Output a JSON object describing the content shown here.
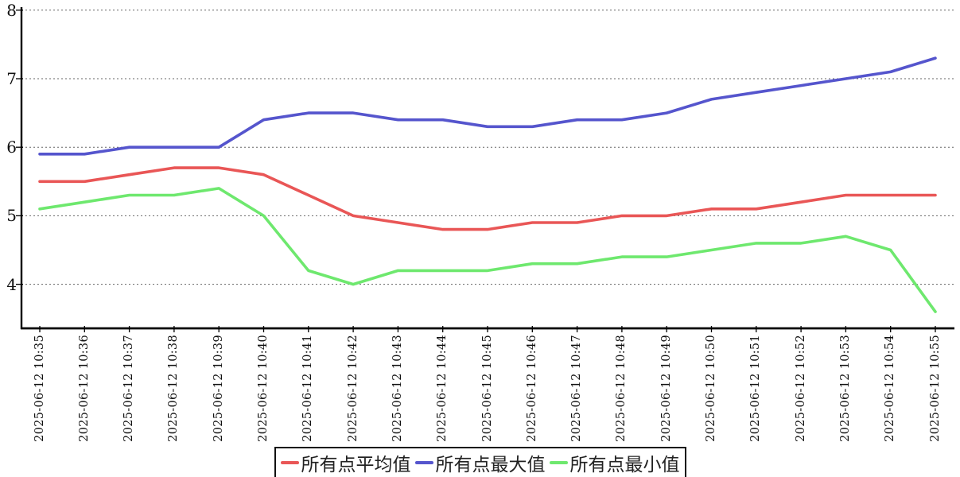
{
  "chart_data": {
    "type": "line",
    "title": "",
    "xlabel": "",
    "ylabel": "",
    "categories": [
      "2025-06-12 10:35",
      "2025-06-12 10:36",
      "2025-06-12 10:37",
      "2025-06-12 10:38",
      "2025-06-12 10:39",
      "2025-06-12 10:40",
      "2025-06-12 10:41",
      "2025-06-12 10:42",
      "2025-06-12 10:43",
      "2025-06-12 10:44",
      "2025-06-12 10:45",
      "2025-06-12 10:46",
      "2025-06-12 10:47",
      "2025-06-12 10:48",
      "2025-06-12 10:49",
      "2025-06-12 10:50",
      "2025-06-12 10:51",
      "2025-06-12 10:52",
      "2025-06-12 10:53",
      "2025-06-12 10:54",
      "2025-06-12 10:55"
    ],
    "series": [
      {
        "name": "所有点平均值",
        "color": "#e95656",
        "values": [
          5.5,
          5.5,
          5.6,
          5.7,
          5.7,
          5.6,
          5.3,
          5.0,
          4.9,
          4.8,
          4.8,
          4.9,
          4.9,
          5.0,
          5.0,
          5.1,
          5.1,
          5.2,
          5.3,
          5.3,
          5.3
        ]
      },
      {
        "name": "所有点最大值",
        "color": "#5555cd",
        "values": [
          5.9,
          5.9,
          6.0,
          6.0,
          6.0,
          6.4,
          6.5,
          6.5,
          6.4,
          6.4,
          6.3,
          6.3,
          6.4,
          6.4,
          6.5,
          6.7,
          6.8,
          6.9,
          7.0,
          7.1,
          7.3
        ]
      },
      {
        "name": "所有点最小值",
        "color": "#6ee86e",
        "values": [
          5.1,
          5.2,
          5.3,
          5.3,
          5.4,
          5.0,
          4.2,
          4.0,
          4.2,
          4.2,
          4.2,
          4.3,
          4.3,
          4.4,
          4.4,
          4.5,
          4.6,
          4.6,
          4.7,
          4.5,
          3.6
        ]
      }
    ],
    "yticks": [
      4,
      5,
      6,
      7,
      8
    ],
    "ylim": [
      3.36,
      8.04
    ],
    "grid": "horizontal-dashed",
    "grid_color": "#666666",
    "axis_color": "#000000",
    "legend_position": "bottom-center"
  }
}
